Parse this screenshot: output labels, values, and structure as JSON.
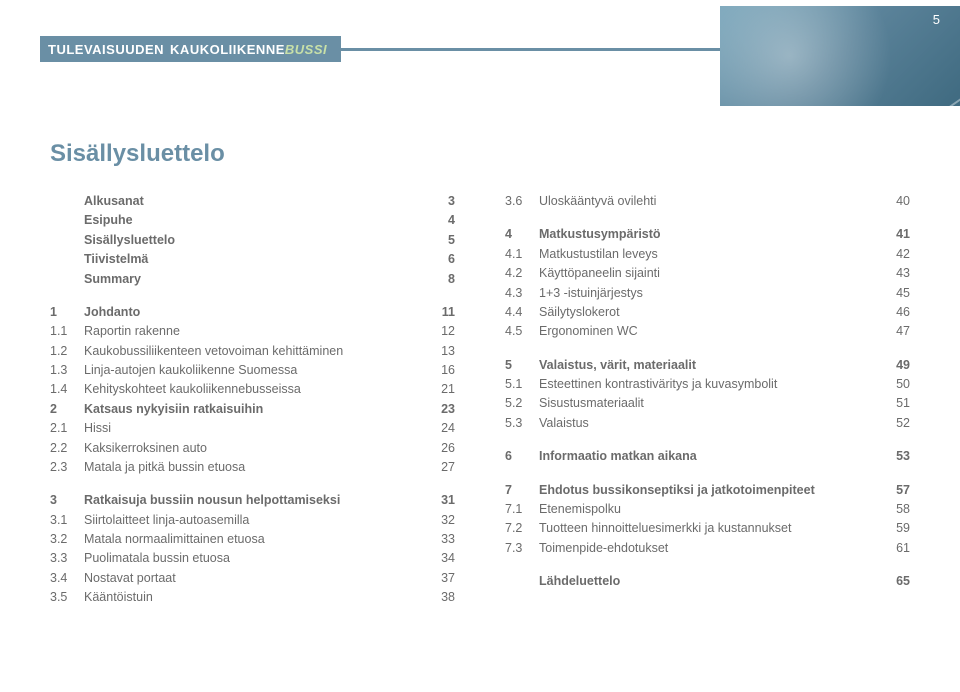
{
  "header": {
    "word1": "TULEVAISUUDEN",
    "word2": "KAUKOLIIKENNE",
    "word3": "BUSSI",
    "page_number": "5"
  },
  "title": "Sisällysluettelo",
  "colors": {
    "accent": "#6a8fa5",
    "text": "#6b6b6b",
    "highlight": "#c8e0a8"
  },
  "col_left": [
    {
      "type": "row",
      "bold": true,
      "num": "",
      "label": "Alkusanat",
      "pg": "3"
    },
    {
      "type": "row",
      "bold": true,
      "num": "",
      "label": "Esipuhe",
      "pg": "4"
    },
    {
      "type": "row",
      "bold": true,
      "num": "",
      "label": "Sisällysluettelo",
      "pg": "5"
    },
    {
      "type": "row",
      "bold": true,
      "num": "",
      "label": "Tiivistelmä",
      "pg": "6"
    },
    {
      "type": "row",
      "bold": true,
      "num": "",
      "label": "Summary",
      "pg": "8"
    },
    {
      "type": "gap"
    },
    {
      "type": "row",
      "bold": true,
      "num": "1",
      "label": "Johdanto",
      "pg": "11"
    },
    {
      "type": "row",
      "num": "1.1",
      "label": "Raportin rakenne",
      "pg": "12"
    },
    {
      "type": "row",
      "num": "1.2",
      "label": "Kaukobussiliikenteen vetovoiman kehittäminen",
      "pg": "13"
    },
    {
      "type": "row",
      "num": "1.3",
      "label": "Linja-autojen kaukoliikenne Suomessa",
      "pg": "16"
    },
    {
      "type": "row",
      "num": "1.4",
      "label": "Kehityskohteet kaukoliikennebusseissa",
      "pg": "21"
    },
    {
      "type": "row",
      "bold": true,
      "num": "2",
      "label": "Katsaus nykyisiin ratkaisuihin",
      "pg": "23"
    },
    {
      "type": "row",
      "num": "2.1",
      "label": "Hissi",
      "pg": "24"
    },
    {
      "type": "row",
      "num": "2.2",
      "label": "Kaksikerroksinen auto",
      "pg": "26"
    },
    {
      "type": "row",
      "num": "2.3",
      "label": "Matala ja pitkä bussin etuosa",
      "pg": "27"
    },
    {
      "type": "gap"
    },
    {
      "type": "row",
      "bold": true,
      "num": "3",
      "label": "Ratkaisuja bussiin nousun helpottamiseksi",
      "pg": "31"
    },
    {
      "type": "row",
      "num": "3.1",
      "label": "Siirtolaitteet linja-autoasemilla",
      "pg": "32"
    },
    {
      "type": "row",
      "num": "3.2",
      "label": "Matala normaalimittainen etuosa",
      "pg": "33"
    },
    {
      "type": "row",
      "num": "3.3",
      "label": "Puolimatala bussin etuosa",
      "pg": "34"
    },
    {
      "type": "row",
      "num": "3.4",
      "label": "Nostavat portaat",
      "pg": "37"
    },
    {
      "type": "row",
      "num": "3.5",
      "label": "Kääntöistuin",
      "pg": "38"
    }
  ],
  "col_right": [
    {
      "type": "row",
      "num": "3.6",
      "label": "Uloskääntyvä ovilehti",
      "pg": "40"
    },
    {
      "type": "gap"
    },
    {
      "type": "row",
      "bold": true,
      "num": "4",
      "label": "Matkustusympäristö",
      "pg": "41"
    },
    {
      "type": "row",
      "num": "4.1",
      "label": "Matkustustilan leveys",
      "pg": "42"
    },
    {
      "type": "row",
      "num": "4.2",
      "label": "Käyttöpaneelin sijainti",
      "pg": "43"
    },
    {
      "type": "row",
      "num": "4.3",
      "label": "1+3 -istuinjärjestys",
      "pg": "45"
    },
    {
      "type": "row",
      "num": "4.4",
      "label": "Säilytyslokerot",
      "pg": "46"
    },
    {
      "type": "row",
      "num": "4.5",
      "label": "Ergonominen WC",
      "pg": "47"
    },
    {
      "type": "gap"
    },
    {
      "type": "row",
      "bold": true,
      "num": "5",
      "label": "Valaistus, värit, materiaalit",
      "pg": "49"
    },
    {
      "type": "row",
      "num": "5.1",
      "label": "Esteettinen kontrastiväritys ja kuvasymbolit",
      "pg": "50"
    },
    {
      "type": "row",
      "num": "5.2",
      "label": "Sisustusmateriaalit",
      "pg": "51"
    },
    {
      "type": "row",
      "num": "5.3",
      "label": "Valaistus",
      "pg": "52"
    },
    {
      "type": "gap"
    },
    {
      "type": "row",
      "bold": true,
      "num": "6",
      "label": "Informaatio matkan aikana",
      "pg": "53"
    },
    {
      "type": "gap"
    },
    {
      "type": "row",
      "bold": true,
      "num": "7",
      "label": "Ehdotus bussikonseptiksi ja jatkotoimenpiteet",
      "pg": "57"
    },
    {
      "type": "row",
      "num": "7.1",
      "label": "Etenemispolku",
      "pg": "58"
    },
    {
      "type": "row",
      "num": "7.2",
      "label": "Tuotteen hinnoitteluesimerkki ja kustannukset",
      "pg": "59"
    },
    {
      "type": "row",
      "num": "7.3",
      "label": "Toimenpide-ehdotukset",
      "pg": "61"
    },
    {
      "type": "gap"
    },
    {
      "type": "row",
      "bold": true,
      "num": "",
      "label": "Lähdeluettelo",
      "pg": "65"
    }
  ]
}
